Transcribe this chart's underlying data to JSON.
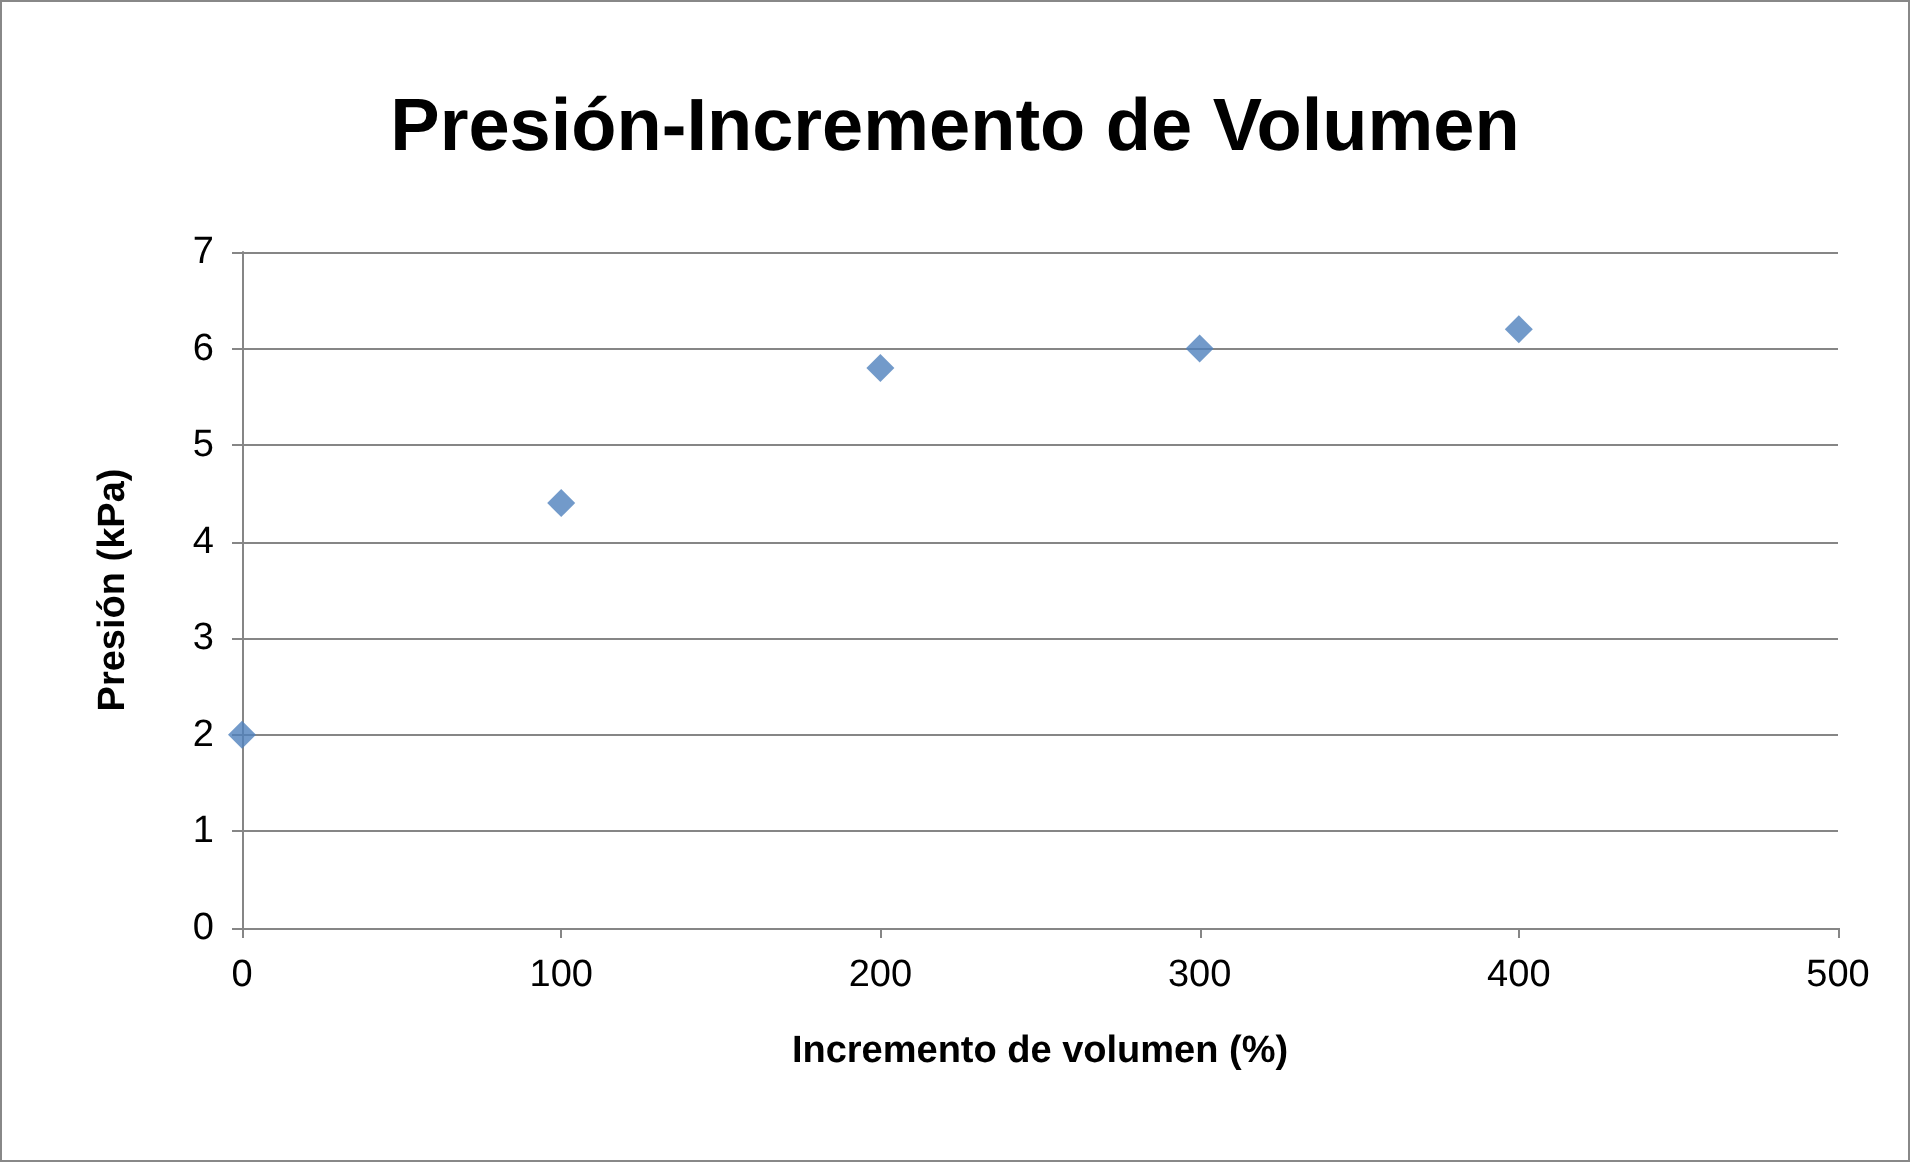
{
  "chart_data": {
    "type": "scatter",
    "title": "Presión-Incremento de Volumen",
    "xlabel": "Incremento de volumen (%)",
    "ylabel": "Presión (kPa)",
    "x": [
      0,
      100,
      200,
      300,
      400
    ],
    "series": [
      {
        "color": "#4f81bd",
        "values": [
          2,
          4.4,
          5.8,
          6,
          6.2
        ]
      }
    ],
    "xlim": [
      0,
      500
    ],
    "xticks": [
      0,
      100,
      200,
      300,
      400,
      500
    ],
    "ylim": [
      0,
      7
    ],
    "yticks": [
      0,
      1,
      2,
      3,
      4,
      5,
      6,
      7
    ],
    "grid": "y",
    "marker": "diamond"
  }
}
